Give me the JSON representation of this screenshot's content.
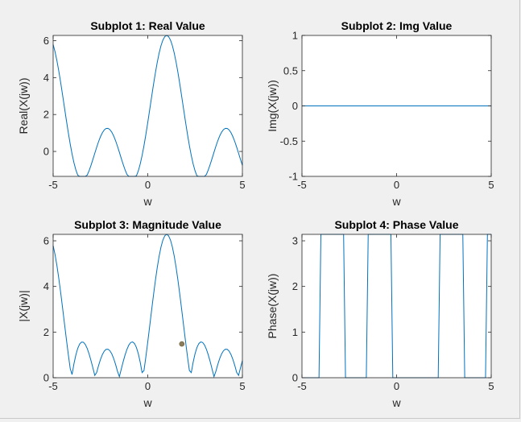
{
  "colors": {
    "figure_bg": "#f0f0f0",
    "axes_bg": "#ffffff",
    "axes_line": "#262626",
    "series": "#0072bd",
    "marker": "#8b7d5b"
  },
  "chart_data": [
    {
      "type": "line",
      "title": "Subplot 1: Real Value",
      "xlabel": "w",
      "ylabel": "Real(X(jw))",
      "xlim": [
        -5,
        5
      ],
      "ylim": [
        -1.35,
        6.283
      ],
      "xticks": [
        -5,
        0,
        5
      ],
      "xtick_labels": [
        "-5",
        "0",
        "5"
      ],
      "yticks": [
        0,
        2,
        4,
        6
      ],
      "ytick_labels": [
        "0",
        "2",
        "4",
        "6"
      ],
      "grid": false,
      "series": [
        {
          "function": "real",
          "x_range": [
            -5,
            5
          ],
          "step": 0.1
        }
      ]
    },
    {
      "type": "line",
      "title": "Subplot 2: Img Value",
      "xlabel": "w",
      "ylabel": "Img(X(jw))",
      "xlim": [
        -5,
        5
      ],
      "ylim": [
        -1,
        1
      ],
      "xticks": [
        -5,
        0,
        5
      ],
      "xtick_labels": [
        "-5",
        "0",
        "5"
      ],
      "yticks": [
        -1,
        -0.5,
        0,
        0.5,
        1
      ],
      "ytick_labels": [
        "-1",
        "-0.5",
        "0",
        "0.5",
        "1"
      ],
      "grid": false,
      "series": [
        {
          "function": "imag",
          "x_range": [
            -5,
            5
          ],
          "step": 0.1
        }
      ]
    },
    {
      "type": "line",
      "title": "Subplot 3: Magnitude Value",
      "xlabel": "w",
      "ylabel": "|X(jw)|",
      "xlim": [
        -5,
        5
      ],
      "ylim": [
        0,
        6.283
      ],
      "xticks": [
        -5,
        0,
        5
      ],
      "xtick_labels": [
        "-5",
        "0",
        "5"
      ],
      "yticks": [
        0,
        2,
        4,
        6
      ],
      "ytick_labels": [
        "0",
        "2",
        "4",
        "6"
      ],
      "grid": false,
      "series": [
        {
          "function": "magnitude",
          "x_range": [
            -5,
            5
          ],
          "step": 0.1
        }
      ],
      "marker_point": {
        "x": 1.8,
        "y": 1.48
      }
    },
    {
      "type": "line",
      "title": "Subplot 4: Phase Value",
      "xlabel": "w",
      "ylabel": "Phase(X(jw))",
      "xlim": [
        -5,
        5
      ],
      "ylim": [
        0,
        3.1416
      ],
      "xticks": [
        -5,
        0,
        5
      ],
      "xtick_labels": [
        "-5",
        "0",
        "5"
      ],
      "yticks": [
        0,
        1,
        2,
        3
      ],
      "ytick_labels": [
        "0",
        "1",
        "2",
        "3"
      ],
      "grid": false,
      "series": [
        {
          "function": "phase",
          "x_range": [
            -5,
            5
          ],
          "step": 0.1
        }
      ]
    }
  ]
}
